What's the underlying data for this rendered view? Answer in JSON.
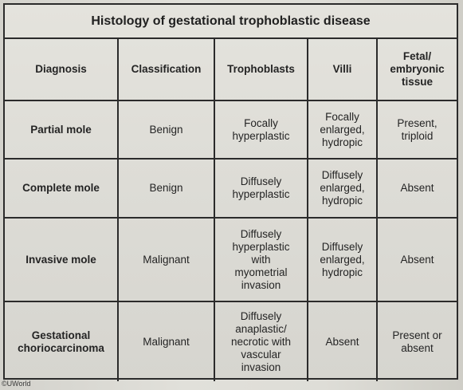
{
  "title": "Histology of gestational trophoblastic disease",
  "columns": [
    "Diagnosis",
    "Classification",
    "Trophoblasts",
    "Villi",
    "Fetal/\nembryonic\ntissue"
  ],
  "rows": [
    {
      "diagnosis": "Partial mole",
      "classification": "Benign",
      "trophoblasts": "Focally\nhyperplastic",
      "villi": "Focally\nenlarged,\nhydropic",
      "fetal_tissue": "Present,\ntriploid"
    },
    {
      "diagnosis": "Complete mole",
      "classification": "Benign",
      "trophoblasts": "Diffusely\nhyperplastic",
      "villi": "Diffusely\nenlarged,\nhydropic",
      "fetal_tissue": "Absent"
    },
    {
      "diagnosis": "Invasive mole",
      "classification": "Malignant",
      "trophoblasts": "Diffusely\nhyperplastic\nwith\nmyometrial\ninvasion",
      "villi": "Diffusely\nenlarged,\nhydropic",
      "fetal_tissue": "Absent"
    },
    {
      "diagnosis": "Gestational\nchoriocarcinoma",
      "classification": "Malignant",
      "trophoblasts": "Diffusely\nanaplastic/\nnecrotic with\nvascular\ninvasion",
      "villi": "Absent",
      "fetal_tissue": "Present or\nabsent"
    }
  ],
  "footer": "©UWorld"
}
